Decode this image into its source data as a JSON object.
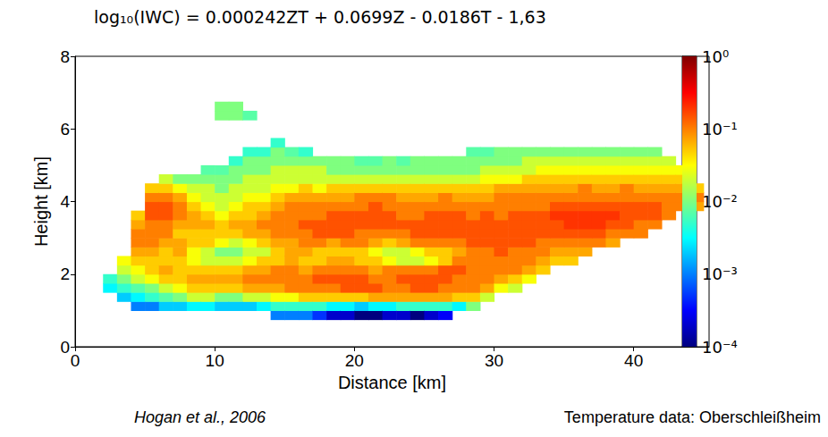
{
  "chart_data": {
    "type": "heatmap",
    "title": "log₁₀(IWC) = 0.000242ZT + 0.0699Z - 0.0186T - 1,63",
    "xlabel": "Distance [km]",
    "ylabel": "Height [km]",
    "xlim": [
      0,
      45.4
    ],
    "xticks": [
      0,
      10,
      20,
      30,
      40
    ],
    "ylim": [
      0,
      8
    ],
    "yticks": [
      0,
      2,
      4,
      6,
      8
    ],
    "grid": false,
    "annotations": [
      "Hogan et al., 2006",
      "Temperature data: Oberschleißheim"
    ],
    "colorbar": {
      "log": true,
      "range": [
        0.0001,
        1
      ],
      "ticks": [
        {
          "value": 0.0001,
          "label": "10⁻⁴"
        },
        {
          "value": 0.001,
          "label": "10⁻³"
        },
        {
          "value": 0.01,
          "label": "10⁻²"
        },
        {
          "value": 0.1,
          "label": "10⁻¹"
        },
        {
          "value": 1,
          "label": "10⁰"
        }
      ]
    },
    "cells": {
      "x": [
        2.5,
        3.5,
        4.5,
        5.5,
        6.5,
        7.5,
        8.5,
        9.5,
        10.5,
        11.5,
        12.5,
        13.5,
        14.5,
        15.5,
        16.5,
        17.5,
        18.5,
        19.5,
        20.5,
        21.5,
        22.5,
        23.5,
        24.5,
        25.5,
        26.5,
        27.5,
        28.5,
        29.5,
        30.5,
        31.5,
        32.5,
        33.5,
        34.5,
        35.5,
        36.5,
        37.5,
        38.5,
        39.5,
        40.5,
        41.5,
        42.5,
        43.5,
        44.5
      ],
      "y": [
        0.875,
        1.125,
        1.375,
        1.625,
        1.875,
        2.125,
        2.375,
        2.625,
        2.875,
        3.125,
        3.375,
        3.625,
        3.875,
        4.125,
        4.375,
        4.625,
        4.875,
        5.125,
        5.375,
        5.625,
        5.875,
        6.125,
        6.375,
        6.625
      ],
      "iwc": [
        [
          null,
          null,
          null,
          0.003,
          0.005,
          null,
          null,
          null,
          null,
          null,
          null,
          null,
          null,
          null,
          null,
          null,
          null,
          null,
          null,
          null,
          null,
          null,
          null,
          null
        ],
        [
          null,
          null,
          0.002,
          0.005,
          0.01,
          0.02,
          0.03,
          null,
          null,
          null,
          null,
          null,
          null,
          null,
          null,
          null,
          null,
          null,
          null,
          null,
          null,
          null,
          null,
          null
        ],
        [
          null,
          0.001,
          0.003,
          0.007,
          0.02,
          0.03,
          0.05,
          0.07,
          0.1,
          0.1,
          0.07,
          0.05,
          null,
          null,
          null,
          null,
          null,
          null,
          null,
          null,
          null,
          null,
          null,
          null
        ],
        [
          null,
          0.001,
          0.005,
          0.01,
          0.03,
          0.05,
          0.05,
          0.07,
          0.1,
          0.1,
          0.1,
          0.15,
          0.15,
          0.1,
          0.05,
          null,
          null,
          null,
          null,
          null,
          null,
          null,
          null,
          null
        ],
        [
          null,
          0.002,
          0.007,
          0.02,
          0.05,
          0.07,
          0.05,
          0.05,
          0.07,
          0.1,
          0.1,
          0.15,
          0.15,
          0.1,
          0.05,
          0.02,
          null,
          null,
          null,
          null,
          null,
          null,
          null,
          null
        ],
        [
          null,
          0.002,
          0.01,
          0.03,
          0.05,
          0.05,
          0.05,
          0.07,
          0.07,
          0.05,
          0.07,
          0.1,
          0.1,
          0.07,
          0.03,
          0.01,
          null,
          null,
          null,
          null,
          null,
          null,
          null,
          null
        ],
        [
          null,
          0.003,
          0.02,
          0.05,
          0.07,
          0.05,
          0.03,
          0.03,
          0.05,
          0.05,
          0.07,
          0.07,
          0.05,
          0.03,
          0.02,
          0.01,
          null,
          null,
          null,
          null,
          null,
          null,
          null,
          null
        ],
        [
          null,
          0.003,
          0.02,
          0.05,
          0.07,
          0.05,
          0.02,
          0.02,
          0.05,
          0.05,
          0.07,
          0.05,
          0.03,
          0.02,
          0.02,
          0.01,
          0.007,
          null,
          null,
          null,
          null,
          null,
          null,
          null
        ],
        [
          null,
          0.002,
          0.01,
          0.05,
          0.07,
          0.05,
          0.02,
          0.01,
          0.03,
          0.05,
          0.05,
          0.03,
          0.02,
          0.02,
          0.01,
          0.01,
          0.007,
          null,
          null,
          null,
          null,
          null,
          0.01,
          0.01
        ],
        [
          null,
          0.002,
          0.01,
          0.05,
          0.07,
          0.05,
          0.02,
          0.01,
          0.02,
          0.05,
          0.07,
          0.05,
          0.03,
          0.02,
          0.02,
          0.01,
          0.01,
          0.005,
          null,
          null,
          null,
          null,
          0.01,
          0.01
        ],
        [
          null,
          0.002,
          0.02,
          0.07,
          0.1,
          0.07,
          0.03,
          0.02,
          0.03,
          0.07,
          0.07,
          0.05,
          0.05,
          0.03,
          0.02,
          0.02,
          0.01,
          0.01,
          0.005,
          null,
          null,
          null,
          0.007,
          null
        ],
        [
          null,
          0.003,
          0.02,
          0.07,
          0.1,
          0.07,
          0.05,
          0.02,
          0.05,
          0.07,
          0.1,
          0.07,
          0.05,
          0.03,
          0.02,
          0.02,
          0.01,
          0.01,
          0.005,
          null,
          null,
          null,
          null,
          null
        ],
        [
          0.001,
          0.005,
          0.03,
          0.07,
          0.1,
          0.1,
          0.05,
          0.05,
          0.07,
          0.1,
          0.1,
          0.1,
          0.07,
          0.05,
          0.03,
          0.02,
          0.02,
          0.01,
          0.01,
          0.005,
          null,
          null,
          null,
          null
        ],
        [
          0.001,
          0.005,
          0.03,
          0.1,
          0.1,
          0.1,
          0.07,
          0.07,
          0.07,
          0.1,
          0.1,
          0.1,
          0.1,
          0.07,
          0.03,
          0.02,
          0.02,
          0.01,
          0.007,
          null,
          null,
          null,
          null,
          null
        ],
        [
          0.001,
          0.005,
          0.05,
          0.1,
          0.1,
          0.07,
          0.05,
          0.07,
          0.1,
          0.1,
          0.15,
          0.1,
          0.1,
          0.07,
          0.05,
          0.02,
          0.02,
          0.01,
          0.005,
          null,
          null,
          null,
          null,
          null
        ],
        [
          0.0005,
          0.005,
          0.05,
          0.1,
          0.15,
          0.1,
          0.05,
          0.05,
          0.1,
          0.15,
          0.15,
          0.1,
          0.1,
          0.07,
          0.03,
          0.02,
          0.02,
          0.01,
          null,
          null,
          null,
          null,
          null,
          null
        ],
        [
          0.0002,
          0.003,
          0.05,
          0.1,
          0.15,
          0.1,
          0.07,
          0.05,
          0.07,
          0.15,
          0.15,
          0.15,
          0.1,
          0.07,
          0.05,
          0.02,
          0.01,
          0.01,
          null,
          null,
          null,
          null,
          null,
          null
        ],
        [
          0.0002,
          0.003,
          0.05,
          0.15,
          0.15,
          0.1,
          0.07,
          0.05,
          0.1,
          0.15,
          0.15,
          0.15,
          0.1,
          0.07,
          0.05,
          0.02,
          0.01,
          0.01,
          null,
          null,
          null,
          null,
          null,
          null
        ],
        [
          0.0001,
          0.002,
          0.05,
          0.15,
          0.15,
          0.1,
          0.05,
          0.05,
          0.1,
          0.1,
          0.15,
          0.15,
          0.1,
          0.1,
          0.05,
          0.02,
          0.01,
          0.007,
          null,
          null,
          null,
          null,
          null,
          null
        ],
        [
          0.0001,
          0.003,
          0.07,
          0.15,
          0.1,
          0.07,
          0.05,
          0.03,
          0.07,
          0.1,
          0.15,
          0.15,
          0.15,
          0.1,
          0.05,
          0.02,
          0.01,
          0.007,
          null,
          null,
          null,
          null,
          null,
          null
        ],
        [
          0.0002,
          0.003,
          0.07,
          0.1,
          0.1,
          0.1,
          0.03,
          0.02,
          0.05,
          0.1,
          0.15,
          0.15,
          0.1,
          0.1,
          0.05,
          0.02,
          0.01,
          0.01,
          null,
          null,
          null,
          null,
          null,
          null
        ],
        [
          0.0002,
          0.005,
          0.07,
          0.1,
          0.15,
          0.1,
          0.02,
          0.02,
          0.07,
          0.1,
          0.15,
          0.1,
          0.1,
          0.07,
          0.05,
          0.02,
          0.01,
          0.007,
          null,
          null,
          null,
          null,
          null,
          null
        ],
        [
          0.0001,
          0.005,
          0.07,
          0.15,
          0.15,
          0.1,
          0.02,
          0.03,
          0.1,
          0.15,
          0.15,
          0.1,
          0.1,
          0.07,
          0.05,
          0.02,
          0.01,
          0.01,
          null,
          null,
          null,
          null,
          null,
          null
        ],
        [
          0.0002,
          0.005,
          0.07,
          0.15,
          0.15,
          0.1,
          0.03,
          0.05,
          0.1,
          0.15,
          0.15,
          0.15,
          0.1,
          0.07,
          0.05,
          0.02,
          0.01,
          0.01,
          null,
          null,
          null,
          null,
          null,
          null
        ],
        [
          0.0003,
          0.005,
          0.07,
          0.1,
          0.15,
          0.15,
          0.05,
          0.05,
          0.1,
          0.15,
          0.15,
          0.15,
          0.1,
          0.1,
          0.05,
          0.02,
          0.01,
          0.01,
          null,
          null,
          null,
          null,
          null,
          null
        ],
        [
          null,
          0.003,
          0.05,
          0.1,
          0.1,
          0.15,
          0.1,
          0.07,
          0.1,
          0.15,
          0.15,
          0.15,
          0.1,
          0.07,
          0.05,
          0.02,
          0.01,
          0.01,
          null,
          null,
          null,
          null,
          null,
          null
        ],
        [
          null,
          0.01,
          0.05,
          0.1,
          0.1,
          0.1,
          0.1,
          0.1,
          0.15,
          0.15,
          0.15,
          0.1,
          0.1,
          0.07,
          0.05,
          0.02,
          0.01,
          0.01,
          0.007,
          null,
          null,
          null,
          null,
          null
        ],
        [
          null,
          null,
          0.02,
          0.07,
          0.1,
          0.1,
          0.1,
          0.1,
          0.15,
          0.15,
          0.15,
          0.15,
          0.1,
          0.07,
          0.05,
          0.03,
          0.02,
          0.01,
          0.007,
          null,
          null,
          null,
          null,
          null
        ],
        [
          null,
          null,
          null,
          0.03,
          0.07,
          0.1,
          0.1,
          0.15,
          0.15,
          0.15,
          0.15,
          0.1,
          0.1,
          0.1,
          0.07,
          0.03,
          0.02,
          0.01,
          0.01,
          null,
          null,
          null,
          null,
          null
        ],
        [
          null,
          null,
          null,
          0.02,
          0.05,
          0.1,
          0.1,
          0.1,
          0.15,
          0.15,
          0.15,
          0.15,
          0.1,
          0.1,
          0.07,
          0.03,
          0.02,
          0.01,
          0.01,
          null,
          null,
          null,
          null,
          null
        ],
        [
          null,
          null,
          null,
          null,
          0.03,
          0.07,
          0.1,
          0.1,
          0.15,
          0.15,
          0.15,
          0.15,
          0.1,
          0.1,
          0.07,
          0.05,
          0.02,
          0.02,
          0.01,
          null,
          null,
          null,
          null,
          null
        ],
        [
          null,
          null,
          null,
          null,
          null,
          0.05,
          0.07,
          0.1,
          0.1,
          0.15,
          0.15,
          0.15,
          0.1,
          0.1,
          0.07,
          0.05,
          0.03,
          0.02,
          0.01,
          null,
          null,
          null,
          null,
          null
        ],
        [
          null,
          null,
          null,
          null,
          null,
          null,
          0.05,
          0.07,
          0.1,
          0.15,
          0.15,
          0.2,
          0.15,
          0.1,
          0.07,
          0.05,
          0.03,
          0.02,
          0.01,
          null,
          null,
          null,
          null,
          null
        ],
        [
          null,
          null,
          null,
          null,
          null,
          null,
          0.05,
          0.07,
          0.1,
          0.15,
          0.2,
          0.2,
          0.15,
          0.1,
          0.07,
          0.05,
          0.03,
          0.02,
          0.01,
          null,
          null,
          null,
          null,
          null
        ],
        [
          null,
          null,
          null,
          null,
          null,
          null,
          null,
          0.07,
          0.1,
          0.15,
          0.2,
          0.2,
          0.15,
          0.1,
          0.1,
          0.05,
          0.03,
          0.02,
          0.01,
          null,
          null,
          null,
          null,
          null
        ],
        [
          null,
          null,
          null,
          null,
          null,
          null,
          null,
          null,
          0.1,
          0.15,
          0.2,
          0.2,
          0.15,
          0.1,
          0.07,
          0.05,
          0.03,
          0.02,
          0.01,
          null,
          null,
          null,
          null,
          null
        ],
        [
          null,
          null,
          null,
          null,
          null,
          null,
          null,
          null,
          0.07,
          0.1,
          0.15,
          0.2,
          0.15,
          0.1,
          0.07,
          0.05,
          0.03,
          0.02,
          0.01,
          null,
          null,
          null,
          null,
          null
        ],
        [
          null,
          null,
          null,
          null,
          null,
          null,
          null,
          null,
          null,
          0.1,
          0.15,
          0.15,
          0.15,
          0.1,
          0.1,
          0.05,
          0.03,
          0.02,
          0.01,
          null,
          null,
          null,
          null,
          null
        ],
        [
          null,
          null,
          null,
          null,
          null,
          null,
          null,
          null,
          null,
          0.1,
          0.1,
          0.15,
          0.15,
          0.1,
          0.07,
          0.05,
          0.03,
          0.02,
          0.01,
          null,
          null,
          null,
          null,
          null
        ],
        [
          null,
          null,
          null,
          null,
          null,
          null,
          null,
          null,
          null,
          null,
          0.1,
          0.15,
          0.15,
          0.1,
          0.07,
          0.05,
          0.03,
          0.02,
          0.01,
          null,
          null,
          null,
          null,
          null
        ],
        [
          null,
          null,
          null,
          null,
          null,
          null,
          null,
          null,
          null,
          null,
          null,
          0.1,
          0.1,
          0.1,
          0.07,
          0.05,
          0.03,
          0.02,
          null,
          null,
          null,
          null,
          null,
          null
        ],
        [
          null,
          null,
          null,
          null,
          null,
          null,
          null,
          null,
          null,
          null,
          null,
          null,
          0.1,
          0.1,
          0.07,
          0.05,
          0.03,
          null,
          null,
          null,
          null,
          null,
          null,
          null
        ],
        [
          null,
          null,
          null,
          null,
          null,
          null,
          null,
          null,
          null,
          null,
          null,
          null,
          0.07,
          0.1,
          0.05,
          null,
          null,
          null,
          null,
          null,
          null,
          null,
          null,
          null
        ]
      ]
    }
  }
}
